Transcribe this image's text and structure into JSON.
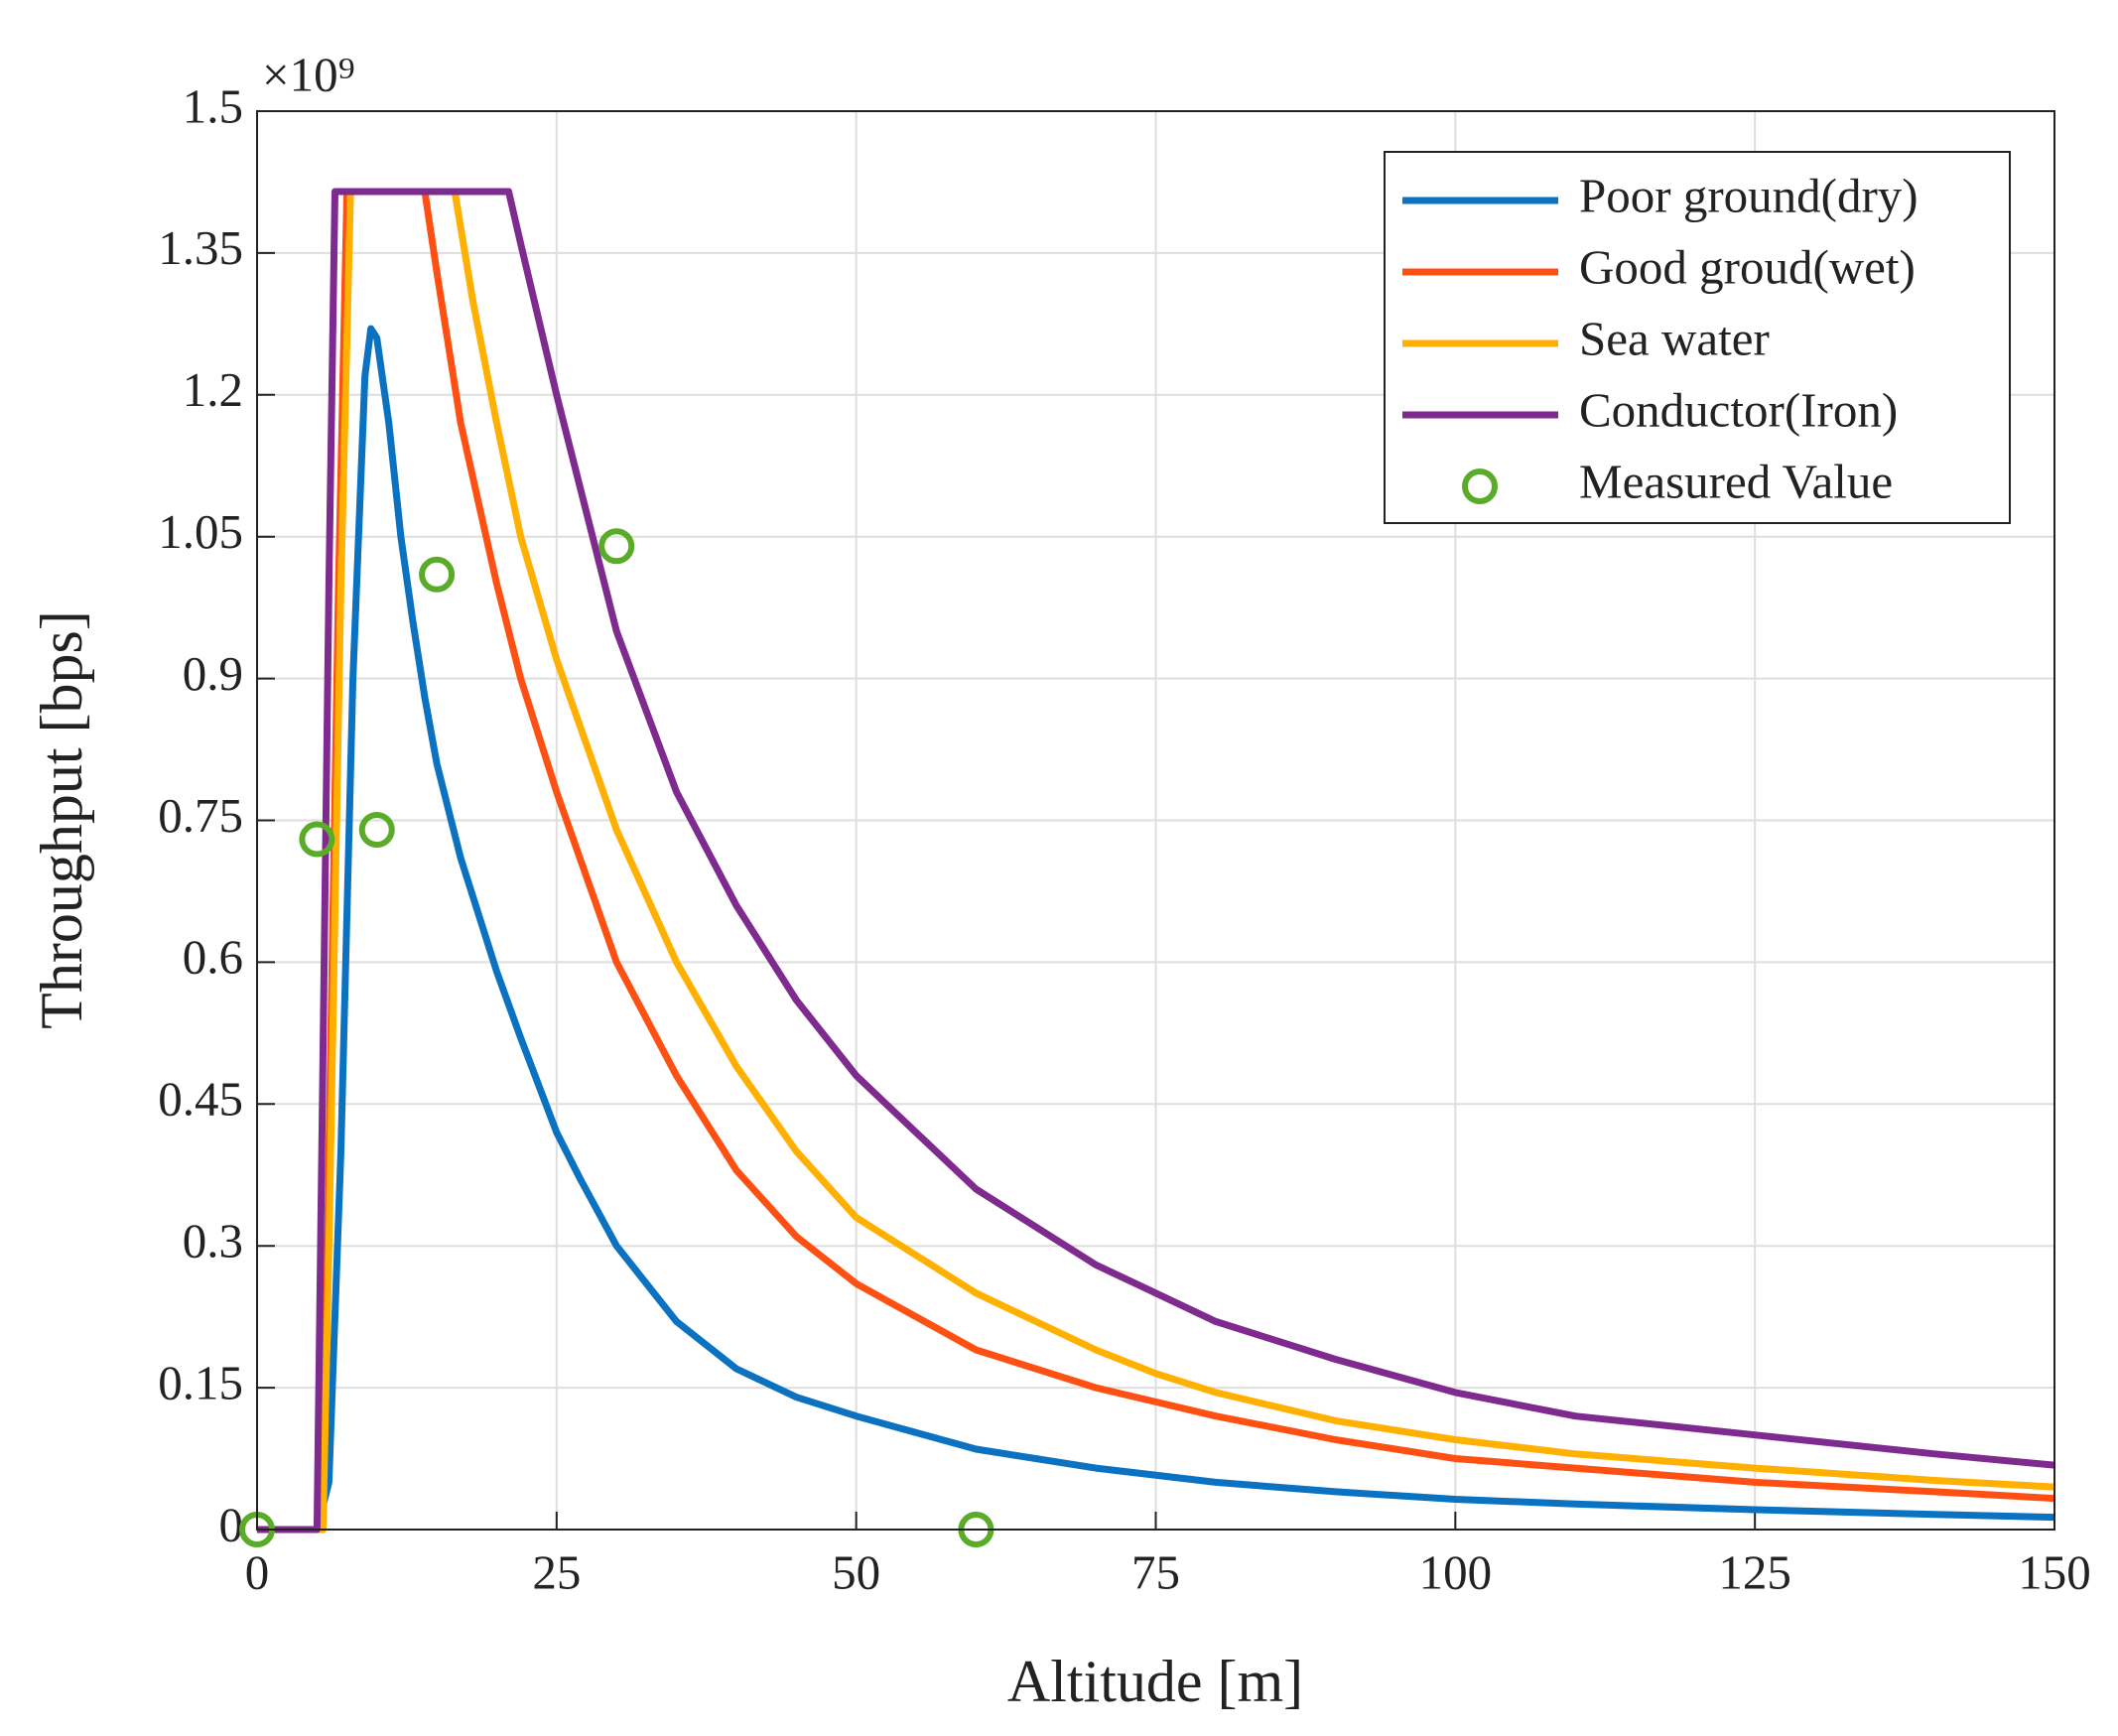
{
  "chart_data": {
    "type": "line",
    "xlabel": "Altitude [m]",
    "ylabel": "Throughput [bps]",
    "y_exponent": "×10⁹",
    "xlim": [
      0,
      150
    ],
    "xticks": [
      0,
      25,
      50,
      75,
      100,
      125,
      150
    ],
    "ylim": [
      0,
      1.5
    ],
    "yticks": [
      0,
      0.15,
      0.3,
      0.45,
      0.6,
      0.75,
      0.9,
      1.05,
      1.2,
      1.35,
      1.5
    ],
    "grid": true,
    "legend": "top-right",
    "series": [
      {
        "name": "Poor ground(dry)",
        "color": "#0a72c0",
        "x": [
          0,
          5,
          6,
          7,
          8,
          9,
          9.5,
          10,
          11,
          12,
          13,
          14,
          15,
          17,
          20,
          22,
          25,
          27,
          30,
          35,
          40,
          45,
          50,
          60,
          70,
          80,
          90,
          100,
          110,
          125,
          140,
          150
        ],
        "values": [
          0,
          0,
          0.05,
          0.4,
          0.9,
          1.22,
          1.27,
          1.26,
          1.17,
          1.05,
          0.96,
          0.88,
          0.81,
          0.71,
          0.59,
          0.52,
          0.42,
          0.37,
          0.3,
          0.22,
          0.17,
          0.14,
          0.12,
          0.085,
          0.065,
          0.05,
          0.04,
          0.032,
          0.027,
          0.021,
          0.016,
          0.013
        ]
      },
      {
        "name": "Good groud(wet)",
        "color": "#ff5014",
        "x": [
          0,
          5.5,
          6,
          6.8,
          7.5,
          14,
          15,
          17,
          20,
          22,
          25,
          30,
          35,
          40,
          45,
          50,
          60,
          70,
          75,
          80,
          90,
          100,
          110,
          125,
          140,
          150
        ],
        "values": [
          0,
          0,
          0.4,
          1.0,
          1.415,
          1.415,
          1.33,
          1.17,
          1.0,
          0.9,
          0.78,
          0.6,
          0.48,
          0.38,
          0.31,
          0.26,
          0.19,
          0.15,
          0.135,
          0.12,
          0.095,
          0.075,
          0.065,
          0.05,
          0.04,
          0.033
        ]
      },
      {
        "name": "Sea water",
        "color": "#ffb000",
        "x": [
          0,
          5.5,
          6,
          7,
          7.8,
          16.5,
          18,
          20,
          22,
          25,
          30,
          35,
          40,
          45,
          50,
          60,
          70,
          75,
          80,
          90,
          100,
          110,
          125,
          140,
          150
        ],
        "values": [
          0,
          0,
          0.3,
          1.0,
          1.415,
          1.415,
          1.3,
          1.17,
          1.05,
          0.92,
          0.74,
          0.6,
          0.49,
          0.4,
          0.33,
          0.25,
          0.19,
          0.165,
          0.145,
          0.115,
          0.095,
          0.08,
          0.065,
          0.052,
          0.045
        ]
      },
      {
        "name": "Conductor(Iron)",
        "color": "#7e2a8e",
        "x": [
          0,
          5,
          5.5,
          6,
          6.5,
          21,
          22,
          25,
          27,
          30,
          35,
          40,
          45,
          50,
          55,
          60,
          70,
          75,
          80,
          90,
          100,
          110,
          125,
          140,
          150
        ],
        "values": [
          0,
          0,
          0.5,
          1.0,
          1.415,
          1.415,
          1.36,
          1.2,
          1.1,
          0.95,
          0.78,
          0.66,
          0.56,
          0.48,
          0.42,
          0.36,
          0.28,
          0.25,
          0.22,
          0.18,
          0.145,
          0.12,
          0.1,
          0.08,
          0.068
        ]
      },
      {
        "name": "Measured Value",
        "color": "#5aac28",
        "mode": "markers",
        "x": [
          0,
          5,
          10,
          15,
          30,
          60
        ],
        "values": [
          0,
          0.73,
          0.74,
          1.01,
          1.04,
          0
        ]
      }
    ]
  }
}
